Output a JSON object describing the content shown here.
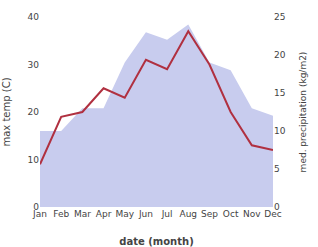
{
  "chart_data": {
    "type": "line",
    "x_label": "date (month)",
    "y_label": "max temp (C)",
    "y2_label": "med. precipitation (kg/m2)",
    "categories": [
      "Jan",
      "Feb",
      "Mar",
      "Apr",
      "May",
      "Jun",
      "Jul",
      "Aug",
      "Sep",
      "Oct",
      "Nov",
      "Dec"
    ],
    "series": [
      {
        "type": "area",
        "axis": "y2",
        "color": "#c8ccee",
        "values": [
          10,
          10,
          13,
          13,
          19,
          23,
          22,
          24,
          19,
          18,
          13,
          12
        ]
      },
      {
        "type": "line",
        "color": "#b03040",
        "values": [
          9,
          19,
          20,
          25,
          23,
          31,
          29,
          37,
          30,
          20,
          13,
          12
        ]
      }
    ],
    "ylim": [
      0,
      40
    ],
    "yticks": [
      0,
      10,
      20,
      30,
      40
    ],
    "y2lim": [
      0,
      25
    ],
    "y2ticks": [
      0,
      5,
      10,
      15,
      20,
      25
    ],
    "grid": false,
    "legend": false
  }
}
